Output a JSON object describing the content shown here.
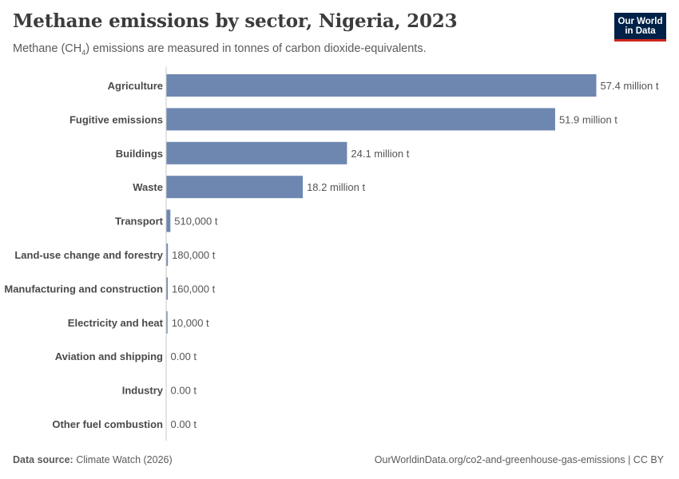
{
  "header": {
    "title": "Methane emissions by sector, Nigeria, 2023",
    "subtitle_prefix": "Methane (CH",
    "subtitle_sub": "4",
    "subtitle_suffix": ") emissions are measured in tonnes of carbon dioxide-equivalents.",
    "logo_line1": "Our World",
    "logo_line2": "in Data"
  },
  "footer": {
    "source_label": "Data source:",
    "source_value": "Climate Watch (2026)",
    "url": "OurWorldinData.org/co2-and-greenhouse-gas-emissions",
    "license": "| CC BY"
  },
  "colors": {
    "bar": "#6d87b0",
    "axis": "#c8c8c8",
    "category_label": "#4a4a4a",
    "value_label": "#555555"
  },
  "chart_data": {
    "type": "bar",
    "orientation": "horizontal",
    "unit": "tonnes of CO2-equivalents",
    "categories": [
      "Agriculture",
      "Fugitive emissions",
      "Buildings",
      "Waste",
      "Transport",
      "Land-use change and forestry",
      "Manufacturing and construction",
      "Electricity and heat",
      "Aviation and shipping",
      "Industry",
      "Other fuel combustion"
    ],
    "values": [
      57400000,
      51900000,
      24100000,
      18200000,
      510000,
      180000,
      160000,
      10000,
      0,
      0,
      0
    ],
    "value_labels": [
      "57.4 million t",
      "51.9 million t",
      "24.1 million t",
      "18.2 million t",
      "510,000 t",
      "180,000 t",
      "160,000 t",
      "10,000 t",
      "0.00 t",
      "0.00 t",
      "0.00 t"
    ],
    "xlim": [
      0,
      57400000
    ]
  }
}
